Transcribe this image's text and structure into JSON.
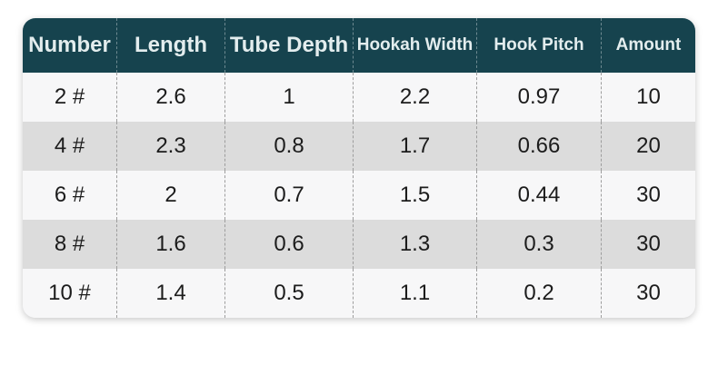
{
  "table": {
    "columns": [
      "Number",
      "Length",
      "Tube Depth",
      "Hookah Width",
      "Hook Pitch",
      "Amount"
    ],
    "rows": [
      [
        "2 #",
        "2.6",
        "1",
        "2.2",
        "0.97",
        "10"
      ],
      [
        "4 #",
        "2.3",
        "0.8",
        "1.7",
        "0.66",
        "20"
      ],
      [
        "6 #",
        "2",
        "0.7",
        "1.5",
        "0.44",
        "30"
      ],
      [
        "8 #",
        "1.6",
        "0.6",
        "1.3",
        "0.3",
        "30"
      ],
      [
        "10 #",
        "1.4",
        "0.5",
        "1.1",
        "0.2",
        "30"
      ]
    ],
    "colors": {
      "header_bg": "#16434e",
      "header_text": "#e3edee",
      "row_odd": "#f7f7f8",
      "row_even": "#dcdcdc",
      "body_text": "#1c1c1c"
    }
  }
}
